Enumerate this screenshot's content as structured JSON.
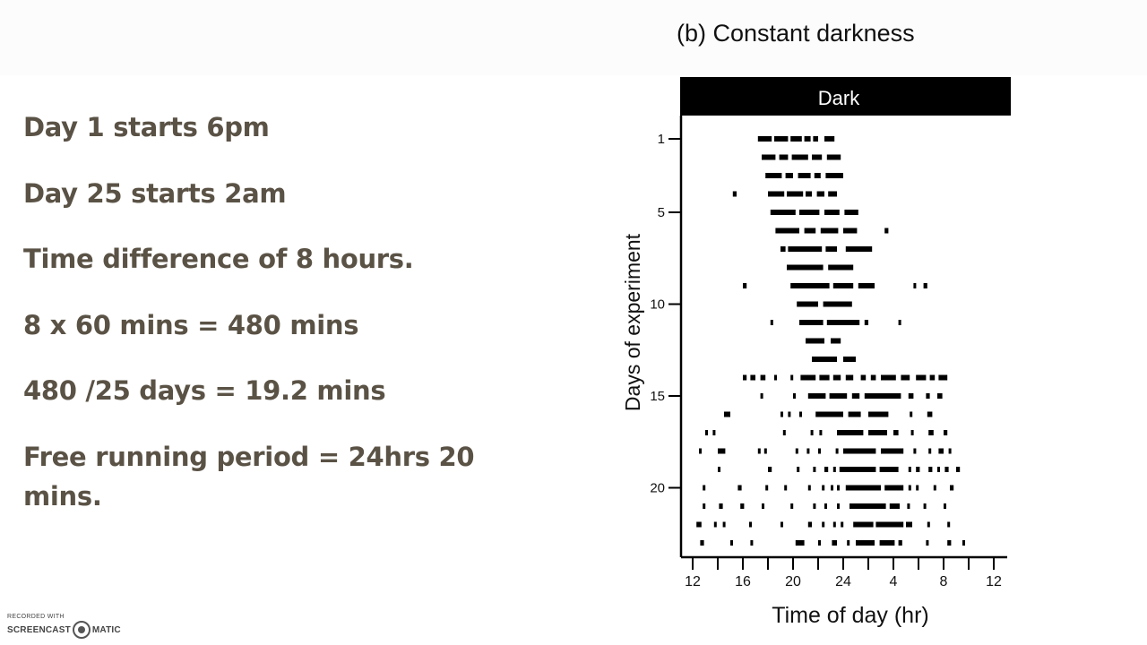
{
  "notes": [
    "Day 1 starts 6pm",
    "Day 25 starts 2am",
    "Time difference of 8 hours.",
    "8 x 60 mins =  480 mins",
    "480 /25 days = 19.2 mins",
    "Free running period = 24hrs 20 mins."
  ],
  "chart_data": {
    "type": "actogram",
    "title": "(b) Constant darkness",
    "condition_bar_label": "Dark",
    "xlabel": "Time of day (hr)",
    "ylabel": "Days of experiment",
    "x_ticks": [
      "12",
      "16",
      "20",
      "24",
      "4",
      "8",
      "12"
    ],
    "y_ticks": [
      "1",
      "5",
      "10",
      "15",
      "20"
    ],
    "x_range_hours": [
      12,
      36
    ],
    "days": 23,
    "activity": [
      {
        "day": 1,
        "bouts": [
          [
            17.2,
            18.3
          ],
          [
            18.5,
            19.6
          ],
          [
            19.8,
            20.7
          ],
          [
            20.9,
            21.4
          ],
          [
            21.6,
            22.0
          ],
          [
            22.5,
            23.3
          ]
        ]
      },
      {
        "day": 2,
        "bouts": [
          [
            17.5,
            18.6
          ],
          [
            18.9,
            19.6
          ],
          [
            19.9,
            21.2
          ],
          [
            21.5,
            22.3
          ],
          [
            22.7,
            23.8
          ]
        ]
      },
      {
        "day": 3,
        "bouts": [
          [
            17.8,
            19.1
          ],
          [
            19.4,
            20.0
          ],
          [
            20.4,
            21.4
          ],
          [
            21.7,
            22.2
          ],
          [
            22.6,
            24.0
          ]
        ]
      },
      {
        "day": 4,
        "bouts": [
          [
            15.2,
            15.5
          ],
          [
            18.0,
            19.3
          ],
          [
            19.5,
            20.8
          ],
          [
            21.0,
            21.5
          ],
          [
            21.9,
            22.5
          ],
          [
            22.8,
            23.5
          ]
        ]
      },
      {
        "day": 5,
        "bouts": [
          [
            18.2,
            20.2
          ],
          [
            20.5,
            22.1
          ],
          [
            22.5,
            23.7
          ],
          [
            24.1,
            25.2
          ]
        ]
      },
      {
        "day": 6,
        "bouts": [
          [
            18.6,
            20.5
          ],
          [
            20.9,
            21.8
          ],
          [
            22.2,
            23.6
          ],
          [
            24.0,
            25.1
          ],
          [
            27.3,
            27.6
          ]
        ]
      },
      {
        "day": 7,
        "bouts": [
          [
            19.0,
            19.4
          ],
          [
            19.6,
            22.3
          ],
          [
            22.6,
            23.5
          ],
          [
            24.2,
            26.3
          ]
        ]
      },
      {
        "day": 8,
        "bouts": [
          [
            19.5,
            22.4
          ],
          [
            22.8,
            24.8
          ]
        ]
      },
      {
        "day": 9,
        "bouts": [
          [
            16.0,
            16.3
          ],
          [
            19.8,
            22.9
          ],
          [
            23.2,
            24.8
          ],
          [
            25.2,
            26.5
          ],
          [
            29.6,
            29.8
          ],
          [
            30.4,
            30.7
          ]
        ]
      },
      {
        "day": 10,
        "bouts": [
          [
            20.3,
            22.0
          ],
          [
            22.4,
            24.7
          ]
        ]
      },
      {
        "day": 11,
        "bouts": [
          [
            18.2,
            18.4
          ],
          [
            20.5,
            22.4
          ],
          [
            22.7,
            25.3
          ],
          [
            25.7,
            26.0
          ],
          [
            28.4,
            28.6
          ]
        ]
      },
      {
        "day": 12,
        "bouts": [
          [
            21.0,
            22.5
          ],
          [
            23.0,
            23.8
          ]
        ]
      },
      {
        "day": 13,
        "bouts": [
          [
            21.5,
            23.5
          ],
          [
            24.0,
            25.0
          ]
        ]
      },
      {
        "day": 14,
        "bouts": [
          [
            16.0,
            16.3
          ],
          [
            16.6,
            17.0
          ],
          [
            17.4,
            17.8
          ],
          [
            18.5,
            18.7
          ],
          [
            19.8,
            20.0
          ],
          [
            20.6,
            21.8
          ],
          [
            22.1,
            22.9
          ],
          [
            23.2,
            23.8
          ],
          [
            24.2,
            24.8
          ],
          [
            25.4,
            25.8
          ],
          [
            26.2,
            26.6
          ],
          [
            27.0,
            28.2
          ],
          [
            28.6,
            29.3
          ],
          [
            29.8,
            30.6
          ],
          [
            30.9,
            31.3
          ],
          [
            31.6,
            32.3
          ]
        ]
      },
      {
        "day": 15,
        "bouts": [
          [
            17.4,
            17.6
          ],
          [
            20.0,
            20.2
          ],
          [
            21.2,
            22.6
          ],
          [
            22.9,
            24.3
          ],
          [
            24.7,
            25.3
          ],
          [
            25.7,
            28.6
          ],
          [
            29.2,
            29.6
          ],
          [
            30.6,
            30.9
          ],
          [
            31.5,
            31.9
          ]
        ]
      },
      {
        "day": 16,
        "bouts": [
          [
            14.5,
            15.0
          ],
          [
            19.0,
            19.2
          ],
          [
            19.6,
            19.8
          ],
          [
            20.5,
            20.7
          ],
          [
            21.8,
            24.0
          ],
          [
            24.4,
            25.4
          ],
          [
            26.0,
            27.6
          ],
          [
            29.3,
            29.5
          ],
          [
            30.7,
            31.1
          ]
        ]
      },
      {
        "day": 17,
        "bouts": [
          [
            13.0,
            13.2
          ],
          [
            13.6,
            13.8
          ],
          [
            19.2,
            19.4
          ],
          [
            21.4,
            21.6
          ],
          [
            22.1,
            22.3
          ],
          [
            23.5,
            25.6
          ],
          [
            26.0,
            27.5
          ],
          [
            28.0,
            28.4
          ],
          [
            29.4,
            29.6
          ],
          [
            30.8,
            31.2
          ],
          [
            32.0,
            32.3
          ]
        ]
      },
      {
        "day": 18,
        "bouts": [
          [
            12.5,
            12.7
          ],
          [
            14.0,
            14.6
          ],
          [
            17.2,
            17.4
          ],
          [
            17.7,
            17.9
          ],
          [
            20.2,
            20.4
          ],
          [
            21.1,
            21.3
          ],
          [
            22.0,
            22.2
          ],
          [
            23.4,
            23.6
          ],
          [
            24.0,
            26.6
          ],
          [
            27.0,
            28.8
          ],
          [
            29.6,
            29.8
          ],
          [
            30.8,
            31.0
          ],
          [
            31.6,
            32.0
          ],
          [
            32.4,
            32.6
          ]
        ]
      },
      {
        "day": 19,
        "bouts": [
          [
            14.0,
            14.2
          ],
          [
            18.0,
            18.3
          ],
          [
            20.3,
            20.5
          ],
          [
            21.6,
            21.8
          ],
          [
            22.5,
            22.8
          ],
          [
            23.2,
            23.4
          ],
          [
            23.7,
            26.6
          ],
          [
            26.9,
            28.4
          ],
          [
            29.2,
            29.4
          ],
          [
            29.8,
            30.1
          ],
          [
            30.8,
            31.1
          ],
          [
            31.5,
            31.7
          ],
          [
            32.1,
            32.4
          ],
          [
            33.0,
            33.3
          ]
        ]
      },
      {
        "day": 20,
        "bouts": [
          [
            12.8,
            13.0
          ],
          [
            15.6,
            15.9
          ],
          [
            17.8,
            18.0
          ],
          [
            19.3,
            19.5
          ],
          [
            21.2,
            21.4
          ],
          [
            22.3,
            22.5
          ],
          [
            23.0,
            23.2
          ],
          [
            23.5,
            23.7
          ],
          [
            24.2,
            27.0
          ],
          [
            27.3,
            28.8
          ],
          [
            29.2,
            29.4
          ],
          [
            29.8,
            30.0
          ],
          [
            31.2,
            31.4
          ],
          [
            32.5,
            32.8
          ]
        ]
      },
      {
        "day": 21,
        "bouts": [
          [
            12.8,
            13.0
          ],
          [
            14.1,
            14.4
          ],
          [
            15.8,
            16.1
          ],
          [
            17.5,
            17.7
          ],
          [
            19.8,
            20.0
          ],
          [
            21.6,
            21.8
          ],
          [
            22.5,
            22.7
          ],
          [
            23.5,
            23.7
          ],
          [
            24.5,
            27.4
          ],
          [
            27.7,
            28.5
          ],
          [
            29.1,
            29.3
          ],
          [
            30.4,
            30.6
          ],
          [
            32.0,
            32.2
          ]
        ]
      },
      {
        "day": 22,
        "bouts": [
          [
            12.3,
            12.7
          ],
          [
            13.7,
            13.9
          ],
          [
            14.4,
            14.6
          ],
          [
            16.5,
            16.7
          ],
          [
            19.0,
            19.2
          ],
          [
            21.2,
            21.5
          ],
          [
            22.3,
            22.5
          ],
          [
            23.2,
            23.4
          ],
          [
            23.8,
            24.0
          ],
          [
            24.8,
            26.4
          ],
          [
            26.6,
            28.8
          ],
          [
            29.0,
            29.5
          ],
          [
            30.7,
            30.9
          ],
          [
            32.3,
            32.5
          ]
        ]
      },
      {
        "day": 23,
        "bouts": [
          [
            12.6,
            12.9
          ],
          [
            15.0,
            15.2
          ],
          [
            16.6,
            16.8
          ],
          [
            20.2,
            20.9
          ],
          [
            22.0,
            22.2
          ],
          [
            23.1,
            23.5
          ],
          [
            24.3,
            24.5
          ],
          [
            25.0,
            26.5
          ],
          [
            26.9,
            28.1
          ],
          [
            28.4,
            28.7
          ],
          [
            30.6,
            30.8
          ],
          [
            32.3,
            32.6
          ],
          [
            33.5,
            33.7
          ]
        ]
      }
    ]
  },
  "watermark": {
    "recorded_with": "RECORDED WITH",
    "brand_left": "SCREENCAST",
    "brand_right": "MATIC"
  }
}
